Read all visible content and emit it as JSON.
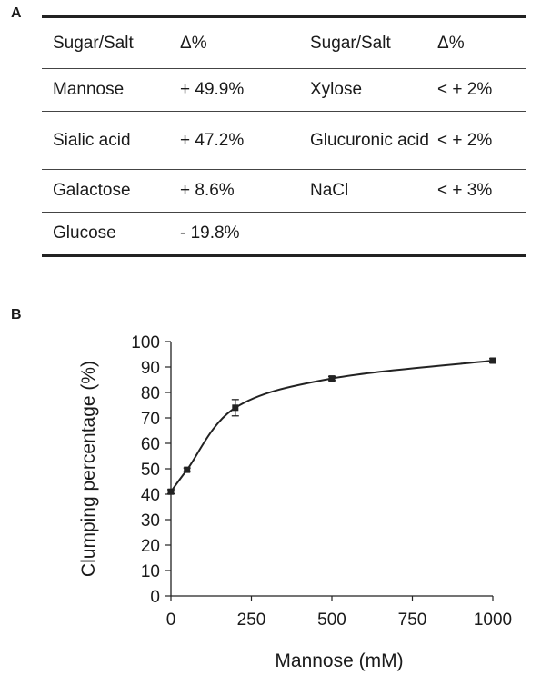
{
  "panel_a": {
    "label": "A",
    "headers": [
      "Sugar/Salt",
      "Δ%",
      "Sugar/Salt",
      "Δ%"
    ],
    "rows": [
      [
        "Mannose",
        "+ 49.9%",
        "Xylose",
        "< + 2%"
      ],
      [
        "Sialic acid",
        "+ 47.2%",
        "Glucuronic acid",
        "< + 2%"
      ],
      [
        "Galactose",
        "+ 8.6%",
        "NaCl",
        "< + 3%"
      ],
      [
        "Glucose",
        "- 19.8%",
        "",
        ""
      ]
    ]
  },
  "panel_b": {
    "label": "B"
  },
  "chart_data": {
    "type": "line",
    "title": "",
    "xlabel": "Mannose (mM)",
    "ylabel": "Clumping percentage (%)",
    "x": [
      0,
      50,
      200,
      500,
      1000
    ],
    "series": [
      {
        "values": [
          41,
          49.6,
          74,
          85.5,
          92.5
        ],
        "errors": [
          0.8,
          0.7,
          3.2,
          0.8,
          0.8
        ]
      }
    ],
    "xlim": [
      0,
      1000
    ],
    "ylim": [
      0,
      100
    ],
    "xticks": [
      0,
      250,
      500,
      750,
      1000
    ],
    "yticks": [
      0,
      10,
      20,
      30,
      40,
      50,
      60,
      70,
      80,
      90,
      100
    ],
    "marker": "square",
    "curve": "smooth",
    "grid": false,
    "line_color": "#222222"
  }
}
